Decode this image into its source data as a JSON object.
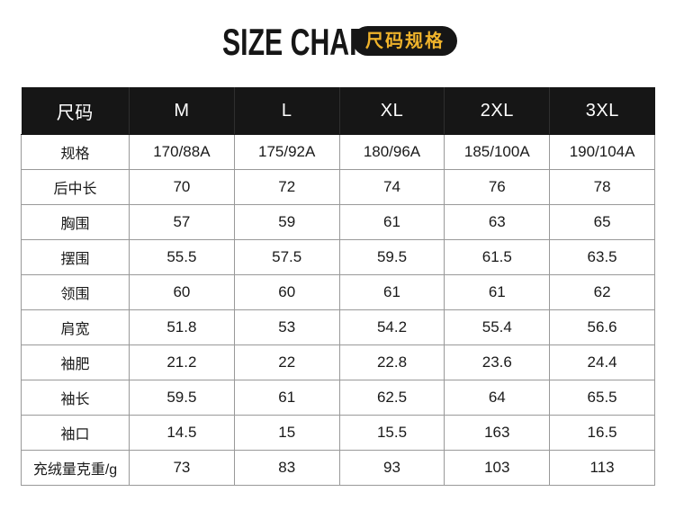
{
  "title": {
    "main": "SIZE CHART",
    "badge": "尺码规格"
  },
  "colors": {
    "header_bg": "#161616",
    "badge_text": "#EFB32B",
    "table_border": "#999999",
    "body_text": "#1a1a1a"
  },
  "chart_data": {
    "type": "table",
    "title": "SIZE CHART 尺码规格",
    "columns": [
      "尺码",
      "M",
      "L",
      "XL",
      "2XL",
      "3XL"
    ],
    "rows": [
      {
        "label": "规格",
        "values": [
          "170/88A",
          "175/92A",
          "180/96A",
          "185/100A",
          "190/104A"
        ]
      },
      {
        "label": "后中长",
        "values": [
          "70",
          "72",
          "74",
          "76",
          "78"
        ]
      },
      {
        "label": "胸围",
        "values": [
          "57",
          "59",
          "61",
          "63",
          "65"
        ]
      },
      {
        "label": "摆围",
        "values": [
          "55.5",
          "57.5",
          "59.5",
          "61.5",
          "63.5"
        ]
      },
      {
        "label": "领围",
        "values": [
          "60",
          "60",
          "61",
          "61",
          "62"
        ]
      },
      {
        "label": "肩宽",
        "values": [
          "51.8",
          "53",
          "54.2",
          "55.4",
          "56.6"
        ]
      },
      {
        "label": "袖肥",
        "values": [
          "21.2",
          "22",
          "22.8",
          "23.6",
          "24.4"
        ]
      },
      {
        "label": "袖长",
        "values": [
          "59.5",
          "61",
          "62.5",
          "64",
          "65.5"
        ]
      },
      {
        "label": "袖口",
        "values": [
          "14.5",
          "15",
          "15.5",
          "163",
          "16.5"
        ]
      },
      {
        "label": "充绒量克重/g",
        "values": [
          "73",
          "83",
          "93",
          "103",
          "113"
        ]
      }
    ]
  }
}
